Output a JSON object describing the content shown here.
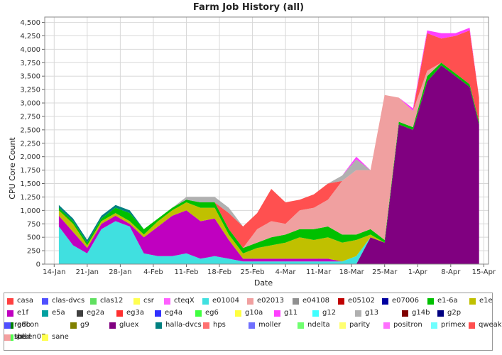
{
  "chart_data": {
    "type": "area",
    "stacked": true,
    "title": "Farm Job History (all)",
    "xlabel": "Date",
    "ylabel": "CPU Core Count",
    "ylim": [
      0,
      4600
    ],
    "yticks": [
      0,
      250,
      500,
      750,
      1000,
      1250,
      1500,
      1750,
      2000,
      2250,
      2500,
      2750,
      3000,
      3250,
      3500,
      3750,
      4000,
      4250,
      4500
    ],
    "ytick_labels": [
      "0",
      "250",
      "500",
      "750",
      "1,000",
      "1,250",
      "1,500",
      "1,750",
      "2,000",
      "2,250",
      "2,500",
      "2,750",
      "3,000",
      "3,250",
      "3,500",
      "3,750",
      "4,000",
      "4,250",
      "4,500"
    ],
    "xticks": [
      "2014-01-14",
      "2014-01-21",
      "2014-01-28",
      "2014-02-04",
      "2014-02-11",
      "2014-02-18",
      "2014-02-25",
      "2014-03-04",
      "2014-03-11",
      "2014-03-18",
      "2014-03-25",
      "2014-04-01",
      "2014-04-08",
      "2014-04-15"
    ],
    "xtick_labels": [
      "14-Jan",
      "21-Jan",
      "28-Jan",
      "4-Feb",
      "11-Feb",
      "18-Feb",
      "25-Feb",
      "4-Mar",
      "11-Mar",
      "18-Mar",
      "25-Mar",
      "1-Apr",
      "8-Apr",
      "15-Apr"
    ],
    "xlim": [
      "2014-01-12",
      "2014-04-16"
    ],
    "grid": true,
    "legend_position": "bottom",
    "x": [
      "2014-01-15",
      "2014-01-18",
      "2014-01-21",
      "2014-01-24",
      "2014-01-27",
      "2014-01-30",
      "2014-02-02",
      "2014-02-05",
      "2014-02-08",
      "2014-02-11",
      "2014-02-14",
      "2014-02-17",
      "2014-02-20",
      "2014-02-23",
      "2014-02-26",
      "2014-03-01",
      "2014-03-04",
      "2014-03-07",
      "2014-03-10",
      "2014-03-13",
      "2014-03-16",
      "2014-03-19",
      "2014-03-22",
      "2014-03-25",
      "2014-03-28",
      "2014-03-31",
      "2014-04-03",
      "2014-04-06",
      "2014-04-09",
      "2014-04-12",
      "2014-04-14"
    ],
    "series": [
      {
        "name": "gluex",
        "color": "#800080",
        "values": [
          0,
          0,
          0,
          0,
          0,
          0,
          0,
          0,
          0,
          0,
          0,
          0,
          0,
          0,
          0,
          0,
          0,
          0,
          0,
          0,
          0,
          0,
          500,
          400,
          2600,
          2500,
          3400,
          3700,
          3500,
          3300,
          2600
        ]
      },
      {
        "name": "g12",
        "color": "#40e0e0",
        "values": [
          700,
          350,
          200,
          650,
          800,
          700,
          200,
          150,
          150,
          200,
          100,
          150,
          100,
          50,
          50,
          50,
          50,
          50,
          50,
          50,
          50,
          150,
          0,
          0,
          0,
          0,
          0,
          0,
          0,
          0,
          0
        ]
      },
      {
        "name": "e1f",
        "color": "#c000c0",
        "values": [
          200,
          250,
          100,
          100,
          100,
          50,
          300,
          550,
          750,
          800,
          700,
          700,
          350,
          50,
          50,
          50,
          50,
          50,
          50,
          50,
          0,
          0,
          0,
          0,
          0,
          0,
          0,
          0,
          0,
          0,
          0
        ]
      },
      {
        "name": "g10a",
        "color": "#c0c000",
        "values": [
          100,
          150,
          50,
          50,
          50,
          50,
          50,
          100,
          100,
          150,
          250,
          200,
          100,
          100,
          200,
          250,
          300,
          400,
          350,
          400,
          350,
          300,
          50,
          0,
          0,
          0,
          0,
          0,
          0,
          0,
          0
        ]
      },
      {
        "name": "e1-6a",
        "color": "#00c000",
        "values": [
          50,
          50,
          50,
          50,
          100,
          150,
          100,
          50,
          50,
          50,
          100,
          100,
          100,
          100,
          100,
          150,
          150,
          150,
          200,
          200,
          150,
          100,
          100,
          50,
          50,
          50,
          100,
          50,
          50,
          50,
          50
        ]
      },
      {
        "name": "e02013",
        "color": "#f0a0a0",
        "values": [
          0,
          0,
          0,
          0,
          0,
          0,
          0,
          0,
          0,
          0,
          0,
          0,
          0,
          0,
          250,
          300,
          200,
          350,
          400,
          500,
          1000,
          1200,
          1100,
          2700,
          450,
          300,
          100,
          0,
          0,
          0,
          0
        ]
      },
      {
        "name": "qweak",
        "color": "#ff5050",
        "values": [
          0,
          0,
          0,
          0,
          0,
          0,
          0,
          0,
          0,
          0,
          0,
          0,
          300,
          400,
          300,
          600,
          400,
          200,
          250,
          300,
          0,
          0,
          0,
          0,
          0,
          0,
          700,
          450,
          700,
          1000,
          450
        ]
      },
      {
        "name": "g13",
        "color": "#b0b0b0",
        "values": [
          0,
          0,
          0,
          0,
          0,
          0,
          0,
          0,
          0,
          50,
          100,
          100,
          100,
          0,
          0,
          0,
          0,
          0,
          0,
          0,
          100,
          200,
          0,
          0,
          0,
          0,
          0,
          0,
          0,
          0,
          0
        ]
      },
      {
        "name": "halla-dvcs",
        "color": "#008080",
        "values": [
          50,
          50,
          50,
          50,
          50,
          50,
          0,
          0,
          0,
          0,
          0,
          0,
          0,
          0,
          0,
          0,
          0,
          0,
          0,
          0,
          0,
          0,
          0,
          0,
          0,
          0,
          0,
          0,
          0,
          0,
          0
        ]
      },
      {
        "name": "sbs",
        "color": "#ff40ff",
        "values": [
          0,
          0,
          0,
          0,
          0,
          0,
          0,
          0,
          0,
          0,
          0,
          0,
          0,
          0,
          0,
          0,
          0,
          0,
          0,
          0,
          0,
          50,
          0,
          0,
          0,
          50,
          50,
          100,
          50,
          50,
          0
        ]
      }
    ]
  },
  "legend": [
    {
      "label": "casa",
      "color": "#ff4040"
    },
    {
      "label": "clas-dvcs",
      "color": "#5050ff"
    },
    {
      "label": "clas12",
      "color": "#60e060"
    },
    {
      "label": "csr",
      "color": "#ffff50"
    },
    {
      "label": "cteqX",
      "color": "#ff60ff"
    },
    {
      "label": "e01004",
      "color": "#40e0e0"
    },
    {
      "label": "e02013",
      "color": "#f0a0a0"
    },
    {
      "label": "e04108",
      "color": "#909090"
    },
    {
      "label": "e05102",
      "color": "#c00000"
    },
    {
      "label": "e07006",
      "color": "#0000a0"
    },
    {
      "label": "e1-6a",
      "color": "#00c000"
    },
    {
      "label": "e1e",
      "color": "#c0c000"
    },
    {
      "label": "e1f",
      "color": "#c000c0"
    },
    {
      "label": "e5a",
      "color": "#00a0a0"
    },
    {
      "label": "eg2a",
      "color": "#404040"
    },
    {
      "label": "eg3a",
      "color": "#ff3030"
    },
    {
      "label": "eg4a",
      "color": "#3030ff"
    },
    {
      "label": "eg6",
      "color": "#40ff40"
    },
    {
      "label": "g10a",
      "color": "#ffff40"
    },
    {
      "label": "g11",
      "color": "#ff40ff"
    },
    {
      "label": "g12",
      "color": "#40ffff"
    },
    {
      "label": "g13",
      "color": "#b0b0b0"
    },
    {
      "label": "g14b",
      "color": "#800000"
    },
    {
      "label": "g2p",
      "color": "#000080"
    },
    {
      "label": "g8b",
      "color": "#008000"
    },
    {
      "label": "g9",
      "color": "#808000"
    },
    {
      "label": "gluex",
      "color": "#800080"
    },
    {
      "label": "halla-dvcs",
      "color": "#008080"
    },
    {
      "label": "hps",
      "color": "#ff7070"
    },
    {
      "label": "moller",
      "color": "#7070ff"
    },
    {
      "label": "ndelta",
      "color": "#70ff70"
    },
    {
      "label": "parity",
      "color": "#ffff70"
    },
    {
      "label": "positron",
      "color": "#ff70ff"
    },
    {
      "label": "primex",
      "color": "#70ffff"
    },
    {
      "label": "qweak",
      "color": "#ff5050"
    },
    {
      "label": "radcon",
      "color": "#5050ff"
    },
    {
      "label": "rosen07",
      "color": "#50ff50"
    },
    {
      "label": "sane",
      "color": "#ffff50"
    },
    {
      "label": "sbs",
      "color": "#ff50ff"
    },
    {
      "label": "solid",
      "color": "#50ffff"
    },
    {
      "label": "tpe",
      "color": "#f4a0a0"
    }
  ]
}
